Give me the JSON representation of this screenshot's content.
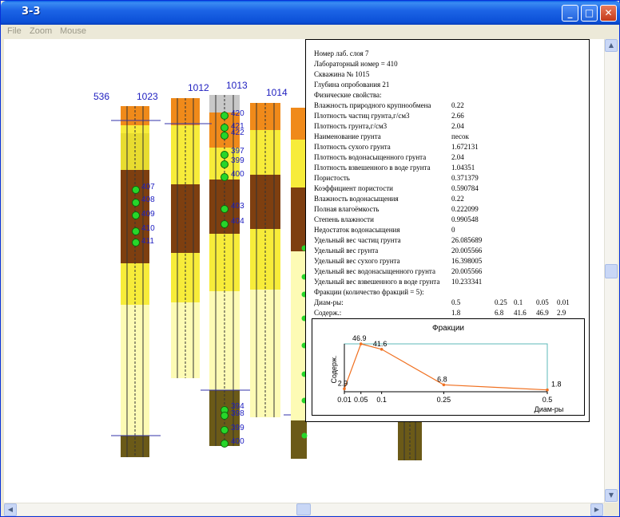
{
  "window": {
    "title": "3-3"
  },
  "title_buttons": {
    "minimize": "_",
    "maximize": "□",
    "close": "✕"
  },
  "menu": [
    "File",
    "Zoom",
    "Mouse"
  ],
  "boreholes": [
    {
      "id": "536"
    },
    {
      "id": "1023",
      "samples": [
        "407",
        "408",
        "409",
        "410",
        "411"
      ]
    },
    {
      "id": "1012"
    },
    {
      "id": "1013",
      "samples_top": [
        "420",
        "421",
        "422",
        "397",
        "399",
        "400",
        "403",
        "404"
      ],
      "samples_bottom": [
        "394",
        "398",
        "399",
        "400"
      ]
    },
    {
      "id": "1014"
    }
  ],
  "info": {
    "header": [
      "Номер лаб. слоя 7",
      "Лабораторный номер = 410",
      "Скважина № 1015",
      "Глубина опробования 21",
      "Физические свойства:"
    ],
    "properties": [
      {
        "name": "Влажность природного крупнообмена",
        "value": "0.22"
      },
      {
        "name": "Плотность частиц грунта,г/см3",
        "value": "2.66"
      },
      {
        "name": "Плотность грунта,г/см3",
        "value": "2.04"
      },
      {
        "name": "Наименование грунта",
        "value": "песок"
      },
      {
        "name": "Плотность сухого грунта",
        "value": "1.672131"
      },
      {
        "name": "Плотность водонасыщенного грунта",
        "value": "2.04"
      },
      {
        "name": "Плотность взвешенного в воде грунта",
        "value": "1.04351"
      },
      {
        "name": "Пористость",
        "value": "0.371379"
      },
      {
        "name": "Коэффициент пористости",
        "value": "0.590784"
      },
      {
        "name": "Влажность водонасыщения",
        "value": "0.22"
      },
      {
        "name": "Полная влагоёмкость",
        "value": "0.222099"
      },
      {
        "name": "Степень влажности",
        "value": "0.990548"
      },
      {
        "name": "Недостаток водонасыщения",
        "value": "0"
      },
      {
        "name": "Удельный вес частиц грунта",
        "value": "26.085689"
      },
      {
        "name": "Удельный вес грунта",
        "value": "20.005566"
      },
      {
        "name": "Удельный вес сухого грунта",
        "value": "16.398005"
      },
      {
        "name": "Удельный вес водонасыщенного грунта",
        "value": "20.005566"
      },
      {
        "name": "Удельный вес взвешенного в воде грунта",
        "value": "10.233341"
      }
    ],
    "fractions_line": "Фракции (количество фракций = 5):",
    "diam_label": "Диам-ры:",
    "diam_values": [
      "0.5",
      "0.25",
      "0.1",
      "0.05",
      "0.01"
    ],
    "content_label": "Содерж.:",
    "content_values": [
      "1.8",
      "6.8",
      "41.6",
      "46.9",
      "2.9"
    ]
  },
  "chart_data": {
    "type": "line",
    "title": "Фракции",
    "xlabel": "Диам-ры",
    "ylabel": "Содерж.",
    "x_ticks": [
      "0.01",
      "0.05",
      "0.1",
      "0.25",
      "0.5"
    ],
    "x": [
      0.01,
      0.05,
      0.1,
      0.25,
      0.5
    ],
    "y": [
      2.9,
      46.9,
      41.6,
      6.8,
      1.8
    ],
    "point_labels": [
      "2.9",
      "46.9",
      "41.6",
      "6.8",
      "1.8"
    ],
    "xlim": [
      0.01,
      0.5
    ],
    "ylim": [
      0,
      46.9
    ],
    "line_color": "#f07020",
    "frame_color": "#5cb8b8"
  },
  "colors": {
    "orange": "#f08a1a",
    "yellow": "#f7ec3a",
    "pale_yellow": "#fdfbb5",
    "brown": "#7e3f10",
    "olive": "#6b5a18",
    "sample_green": "#27d62a",
    "label_blue": "#2020c0"
  }
}
